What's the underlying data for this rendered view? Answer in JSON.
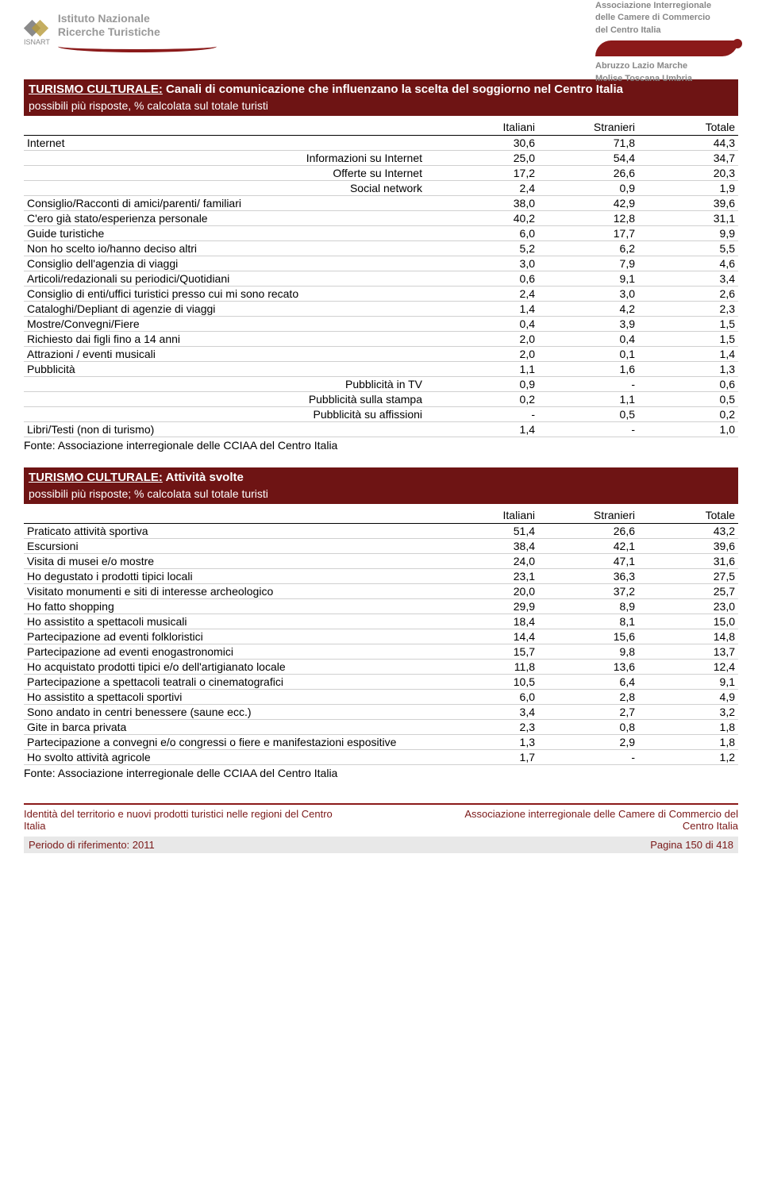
{
  "header": {
    "isnart_label": "ISNART",
    "institute_line1": "Istituto Nazionale",
    "institute_line2": "Ricerche Turistiche",
    "assoc_line1": "Associazione Interregionale",
    "assoc_line2": "delle Camere di Commercio",
    "assoc_line3": "del Centro Italia",
    "regions_line1": "Abruzzo Lazio Marche",
    "regions_line2": "Molise Toscana Umbria"
  },
  "colors": {
    "header_bg": "#6e1414",
    "header_text": "#ffffff",
    "accent": "#8b1a1a",
    "row_border": "#d0d0d0",
    "text": "#000000",
    "muted": "#888888",
    "footer_bg": "#e8e8e8"
  },
  "section1": {
    "title_prefix": "TURISMO CULTURALE:",
    "title_rest": " Canali di comunicazione che influenzano la scelta del soggiorno nel Centro Italia",
    "subtitle": "possibili più risposte, % calcolata sul totale turisti",
    "columns": [
      "",
      "Italiani",
      "Stranieri",
      "Totale"
    ],
    "rows": [
      {
        "label": "Internet",
        "v": [
          "30,6",
          "71,8",
          "44,3"
        ],
        "align": "left"
      },
      {
        "label": "Informazioni su Internet",
        "v": [
          "25,0",
          "54,4",
          "34,7"
        ],
        "align": "right"
      },
      {
        "label": "Offerte su Internet",
        "v": [
          "17,2",
          "26,6",
          "20,3"
        ],
        "align": "right"
      },
      {
        "label": "Social network",
        "v": [
          "2,4",
          "0,9",
          "1,9"
        ],
        "align": "right"
      },
      {
        "label": "Consiglio/Racconti di amici/parenti/ familiari",
        "v": [
          "38,0",
          "42,9",
          "39,6"
        ],
        "align": "left"
      },
      {
        "label": "C'ero già stato/esperienza personale",
        "v": [
          "40,2",
          "12,8",
          "31,1"
        ],
        "align": "left"
      },
      {
        "label": "Guide turistiche",
        "v": [
          "6,0",
          "17,7",
          "9,9"
        ],
        "align": "left"
      },
      {
        "label": "Non ho scelto io/hanno deciso altri",
        "v": [
          "5,2",
          "6,2",
          "5,5"
        ],
        "align": "left"
      },
      {
        "label": "Consiglio dell'agenzia di viaggi",
        "v": [
          "3,0",
          "7,9",
          "4,6"
        ],
        "align": "left"
      },
      {
        "label": "Articoli/redazionali su periodici/Quotidiani",
        "v": [
          "0,6",
          "9,1",
          "3,4"
        ],
        "align": "left"
      },
      {
        "label": "Consiglio di enti/uffici turistici presso cui mi sono recato",
        "v": [
          "2,4",
          "3,0",
          "2,6"
        ],
        "align": "left"
      },
      {
        "label": "Cataloghi/Depliant di agenzie di viaggi",
        "v": [
          "1,4",
          "4,2",
          "2,3"
        ],
        "align": "left"
      },
      {
        "label": "Mostre/Convegni/Fiere",
        "v": [
          "0,4",
          "3,9",
          "1,5"
        ],
        "align": "left"
      },
      {
        "label": "Richiesto dai figli fino a 14 anni",
        "v": [
          "2,0",
          "0,4",
          "1,5"
        ],
        "align": "left"
      },
      {
        "label": "Attrazioni / eventi musicali",
        "v": [
          "2,0",
          "0,1",
          "1,4"
        ],
        "align": "left"
      },
      {
        "label": "Pubblicità",
        "v": [
          "1,1",
          "1,6",
          "1,3"
        ],
        "align": "left"
      },
      {
        "label": "Pubblicità in TV",
        "v": [
          "0,9",
          "-",
          "0,6"
        ],
        "align": "right"
      },
      {
        "label": "Pubblicità sulla stampa",
        "v": [
          "0,2",
          "1,1",
          "0,5"
        ],
        "align": "right"
      },
      {
        "label": "Pubblicità su affissioni",
        "v": [
          "-",
          "0,5",
          "0,2"
        ],
        "align": "right"
      },
      {
        "label": "Libri/Testi (non di turismo)",
        "v": [
          "1,4",
          "-",
          "1,0"
        ],
        "align": "left"
      }
    ],
    "source": "Fonte: Associazione interregionale delle CCIAA del Centro Italia"
  },
  "section2": {
    "title_prefix": "TURISMO CULTURALE:",
    "title_rest": " Attività svolte",
    "subtitle": "possibili più risposte; % calcolata sul totale turisti",
    "columns": [
      "",
      "Italiani",
      "Stranieri",
      "Totale"
    ],
    "rows": [
      {
        "label": "Praticato attività sportiva",
        "v": [
          "51,4",
          "26,6",
          "43,2"
        ]
      },
      {
        "label": "Escursioni",
        "v": [
          "38,4",
          "42,1",
          "39,6"
        ]
      },
      {
        "label": "Visita di musei e/o mostre",
        "v": [
          "24,0",
          "47,1",
          "31,6"
        ]
      },
      {
        "label": "Ho degustato i prodotti tipici locali",
        "v": [
          "23,1",
          "36,3",
          "27,5"
        ]
      },
      {
        "label": "Visitato monumenti e siti di interesse archeologico",
        "v": [
          "20,0",
          "37,2",
          "25,7"
        ]
      },
      {
        "label": "Ho fatto shopping",
        "v": [
          "29,9",
          "8,9",
          "23,0"
        ]
      },
      {
        "label": "Ho assistito a spettacoli musicali",
        "v": [
          "18,4",
          "8,1",
          "15,0"
        ]
      },
      {
        "label": "Partecipazione ad eventi folkloristici",
        "v": [
          "14,4",
          "15,6",
          "14,8"
        ]
      },
      {
        "label": "Partecipazione ad eventi enogastronomici",
        "v": [
          "15,7",
          "9,8",
          "13,7"
        ]
      },
      {
        "label": "Ho acquistato prodotti tipici e/o dell'artigianato locale",
        "v": [
          "11,8",
          "13,6",
          "12,4"
        ]
      },
      {
        "label": "Partecipazione a spettacoli teatrali o cinematografici",
        "v": [
          "10,5",
          "6,4",
          "9,1"
        ]
      },
      {
        "label": "Ho assistito a spettacoli sportivi",
        "v": [
          "6,0",
          "2,8",
          "4,9"
        ]
      },
      {
        "label": "Sono andato in centri benessere (saune ecc.)",
        "v": [
          "3,4",
          "2,7",
          "3,2"
        ]
      },
      {
        "label": "Gite in barca privata",
        "v": [
          "2,3",
          "0,8",
          "1,8"
        ]
      },
      {
        "label": "Partecipazione a convegni e/o congressi o fiere e manifestazioni espositive",
        "v": [
          "1,3",
          "2,9",
          "1,8"
        ]
      },
      {
        "label": "Ho svolto attività agricole",
        "v": [
          "1,7",
          "-",
          "1,2"
        ]
      }
    ],
    "source": "Fonte: Associazione interregionale delle CCIAA del Centro Italia"
  },
  "footer": {
    "left_line1": "Identità del territorio e nuovi prodotti turistici nelle regioni del Centro",
    "left_line2": "Italia",
    "right_line1": "Associazione interregionale delle Camere di Commercio del",
    "right_line2": "Centro Italia",
    "period": "Periodo di riferimento: 2011",
    "page": "Pagina 150 di 418"
  }
}
